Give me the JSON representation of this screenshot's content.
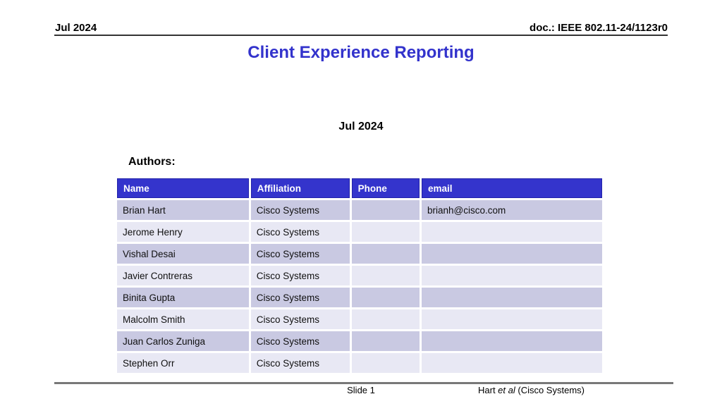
{
  "header": {
    "left": "Jul 2024",
    "right": "doc.: IEEE 802.11-24/1123r0"
  },
  "title": "Client Experience Reporting",
  "subtitle": "Jul 2024",
  "authors_label": "Authors:",
  "table": {
    "columns": [
      "Name",
      "Affiliation",
      "Phone",
      "email"
    ],
    "rows": [
      [
        "Brian Hart",
        "Cisco Systems",
        "",
        "brianh@cisco.com"
      ],
      [
        "Jerome Henry",
        "Cisco Systems",
        "",
        ""
      ],
      [
        "Vishal Desai",
        "Cisco Systems",
        "",
        ""
      ],
      [
        "Javier Contreras",
        "Cisco Systems",
        "",
        ""
      ],
      [
        "Binita Gupta",
        "Cisco Systems",
        "",
        ""
      ],
      [
        "Malcolm Smith",
        "Cisco Systems",
        "",
        ""
      ],
      [
        "Juan Carlos Zuniga",
        "Cisco Systems",
        "",
        ""
      ],
      [
        "Stephen Orr",
        "Cisco Systems",
        "",
        ""
      ]
    ]
  },
  "footer": {
    "slide_number": "Slide 1",
    "attribution_prefix": "Hart ",
    "attribution_etal": "et al",
    "attribution_suffix": " (Cisco Systems)"
  },
  "colors": {
    "accent_blue": "#3333cc",
    "table_header_fill": "#3434cc",
    "table_header_border": "#2222aa",
    "row_odd": "#c9c9e2",
    "row_even": "#e8e8f4",
    "footer_rule": "#787878"
  }
}
